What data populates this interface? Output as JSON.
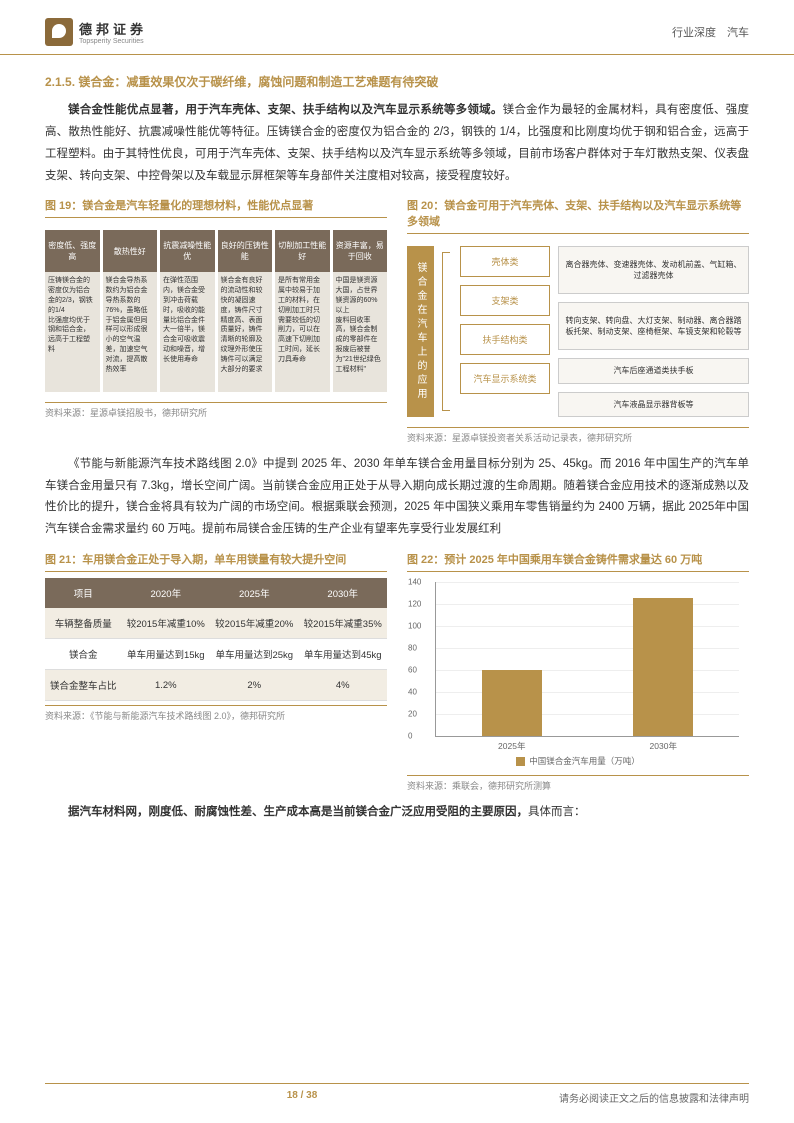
{
  "header": {
    "logo_cn": "德邦证券",
    "logo_en": "Topsperity Securities",
    "right": "行业深度　汽车"
  },
  "section_title": "2.1.5. 镁合金：减重效果仅次于碳纤维，腐蚀问题和制造工艺难题有待突破",
  "para1": "<b>镁合金性能优点显著，用于汽车壳体、支架、扶手结构以及汽车显示系统等多领域。</b>镁合金作为最轻的金属材料，具有密度低、强度高、散热性能好、抗震减噪性能优等特征。压铸镁合金的密度仅为铝合金的 2/3，钢铁的 1/4，比强度和比刚度均优于钢和铝合金，远高于工程塑料。由于其特性优良，可用于汽车壳体、支架、扶手结构以及汽车显示系统等多领域，目前市场客户群体对于车灯散热支架、仪表盘支架、转向支架、中控骨架以及车载显示屏框架等车身部件关注度相对较高，接受程度较好。",
  "fig19": {
    "title": "图 19：镁合金是汽车轻量化的理想材料，性能优点显著",
    "cols": [
      {
        "h": "密度低、强度高",
        "b": "压铸镁合金的密度仅为铝合金的2/3，钢铁的1/4\n比强度均优于钢和铝合金，远高于工程塑料"
      },
      {
        "h": "散热性好",
        "b": "镁合金导热系数约为铝合金导热系数的76%，虽略低于铝金属但同样可以形成很小的空气温差，加速空气对流，提高散热效率"
      },
      {
        "h": "抗震减噪性能优",
        "b": "在弹性范围内，镁合金受到冲击荷载时，吸收的能量比铝合金件大一倍半，镁合金可吸收震动和噪音，增长使用寿命"
      },
      {
        "h": "良好的压铸性能",
        "b": "镁合金有良好的流动性和较快的凝固速度，铸件尺寸精度高、表面质量好，铸件清晰的轮廓及纹理外形使压铸件可以满足大部分的要求"
      },
      {
        "h": "切削加工性能好",
        "b": "是所有常用金属中较易于加工的材料，在切削加工时只需要较低的切削力，可以在高速下切削加工时间，延长刀具寿命"
      },
      {
        "h": "资源丰富，易于回收",
        "b": "中国是镁资源大国，占世界镁资源的60%以上\n废料回收率高，镁合金制成的零部件在报废后被誉为\"21世纪绿色工程材料\""
      }
    ],
    "src": "资料来源：星源卓镁招股书，德邦研究所"
  },
  "fig20": {
    "title": "图 20：镁合金可用于汽车壳体、支架、扶手结构以及汽车显示系统等多领域",
    "vert": "镁合金在汽车上的应用",
    "rows": [
      {
        "cat": "壳体类",
        "desc": "离合器壳体、变速器壳体、发动机前盖、气缸箱、过滤器壳体"
      },
      {
        "cat": "支架类",
        "desc": "转向支架、转向盘、大灯支架、制动器、离合器踏板托架、制动支架、座椅框架、车镜支架和轮毂等"
      },
      {
        "cat": "扶手结构类",
        "desc": "汽车后座通道类扶手板"
      },
      {
        "cat": "汽车显示系统类",
        "desc": "汽车液晶显示器背板等"
      }
    ],
    "src": "资料来源：星源卓镁投资者关系活动记录表，德邦研究所"
  },
  "para2": "《节能与新能源汽车技术路线图 2.0》中提到 2025 年、2030 年单车镁合金用量目标分别为 25、45kg。而 2016 年中国生产的汽车单车镁合金用量只有 7.3kg，增长空间广阔。当前镁合金应用正处于从导入期向成长期过渡的生命周期。随着镁合金应用技术的逐渐成熟以及性价比的提升，镁合金将具有较为广阔的市场空间。根据乘联会预测，2025 年中国狭义乘用车零售销量约为 2400 万辆，据此 2025年中国汽车镁合金需求量约 60 万吨。提前布局镁合金压铸的生产企业有望率先享受行业发展红利",
  "fig21": {
    "title": "图 21：车用镁合金正处于导入期，单车用镁量有较大提升空间",
    "headers": [
      "项目",
      "2020年",
      "2025年",
      "2030年"
    ],
    "rows": [
      [
        "车辆整备质量",
        "较2015年减重10%",
        "较2015年减重20%",
        "较2015年减重35%"
      ],
      [
        "镁合金",
        "单车用量达到15kg",
        "单车用量达到25kg",
        "单车用量达到45kg"
      ],
      [
        "镁合金整车占比",
        "1.2%",
        "2%",
        "4%"
      ]
    ],
    "src": "资料来源：《节能与新能源汽车技术路线图 2.0》，德邦研究所"
  },
  "fig22": {
    "title": "图 22：预计 2025 年中国乘用车镁合金铸件需求量达 60 万吨",
    "type": "bar",
    "ymax": 140,
    "ystep": 20,
    "categories": [
      "2025年",
      "2030年"
    ],
    "values": [
      60,
      126
    ],
    "bar_color": "#b8924a",
    "legend": "中国镁合金汽车用量（万吨）",
    "src": "资料来源：乘联会，德邦研究所测算"
  },
  "para3": "<b>据汽车材料网，刚度低、耐腐蚀性差、生产成本高是当前镁合金广泛应用受阻的主要原因，</b>具体而言：",
  "footer": {
    "page": "18 / 38",
    "right": "请务必阅读正文之后的信息披露和法律声明"
  }
}
